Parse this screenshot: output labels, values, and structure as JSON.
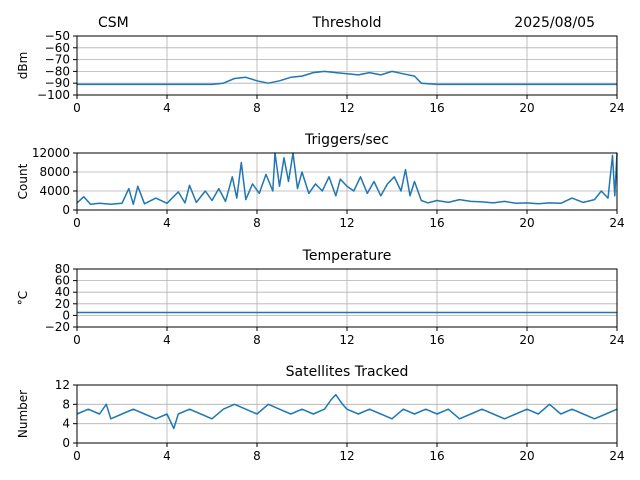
{
  "header": {
    "left": "CSM",
    "right": "2025/08/05"
  },
  "colors": {
    "line": "#1f77b4",
    "grid": "#b0b0b0",
    "axis": "#000000"
  },
  "chart_data": [
    {
      "type": "line",
      "title": "Threshold",
      "xlabel": "",
      "ylabel": "dBm",
      "xlim": [
        0,
        24
      ],
      "ylim": [
        -100,
        -50
      ],
      "xticks": [
        0,
        4,
        8,
        12,
        16,
        20,
        24
      ],
      "yticks": [
        -100,
        -90,
        -80,
        -70,
        -60,
        -50
      ],
      "ytick_labels": [
        "−100",
        "−90",
        "−80",
        "−70",
        "−60",
        "−50"
      ],
      "grid": true,
      "series": [
        {
          "x": [
            0,
            2,
            4,
            6,
            6.5,
            7,
            7.5,
            8,
            8.5,
            9,
            9.5,
            10,
            10.5,
            11,
            11.5,
            12,
            12.5,
            13,
            13.5,
            14,
            14.5,
            15,
            15.3,
            16,
            18,
            20,
            22,
            24
          ],
          "y": [
            -91,
            -91,
            -91,
            -91,
            -90,
            -86,
            -85,
            -88,
            -90,
            -88,
            -85,
            -84,
            -81,
            -80,
            -81,
            -82,
            -83,
            -81,
            -83,
            -80,
            -82,
            -84,
            -90,
            -91,
            -91,
            -91,
            -91,
            -91
          ]
        }
      ]
    },
    {
      "type": "line",
      "title": "Triggers/sec",
      "xlabel": "",
      "ylabel": "Count",
      "xlim": [
        0,
        24
      ],
      "ylim": [
        0,
        12000
      ],
      "xticks": [
        0,
        4,
        8,
        12,
        16,
        20,
        24
      ],
      "yticks": [
        0,
        4000,
        8000,
        12000
      ],
      "ytick_labels": [
        "0",
        "4000",
        "8000",
        "12000"
      ],
      "grid": true,
      "series": [
        {
          "x": [
            0,
            0.3,
            0.6,
            1,
            1.5,
            2,
            2.3,
            2.5,
            2.7,
            3,
            3.5,
            4,
            4.5,
            4.8,
            5,
            5.3,
            5.7,
            6,
            6.3,
            6.6,
            6.9,
            7.1,
            7.3,
            7.5,
            7.8,
            8.1,
            8.4,
            8.7,
            8.8,
            9,
            9.2,
            9.4,
            9.6,
            9.8,
            10,
            10.3,
            10.6,
            10.9,
            11.2,
            11.5,
            11.7,
            12,
            12.3,
            12.6,
            12.9,
            13.2,
            13.5,
            13.8,
            14.1,
            14.4,
            14.6,
            14.8,
            15,
            15.3,
            15.6,
            16,
            16.5,
            17,
            17.5,
            18,
            18.5,
            19,
            19.5,
            20,
            20.5,
            21,
            21.5,
            22,
            22.5,
            23,
            23.3,
            23.6,
            23.8,
            23.9,
            24
          ],
          "y": [
            1500,
            2800,
            1200,
            1400,
            1200,
            1400,
            4500,
            1200,
            5000,
            1300,
            2500,
            1400,
            3800,
            1500,
            5200,
            1600,
            4000,
            2000,
            4500,
            1800,
            7000,
            2500,
            10000,
            2200,
            5500,
            3500,
            7500,
            4000,
            12000,
            5000,
            11000,
            6000,
            12000,
            4500,
            8000,
            3500,
            5500,
            4000,
            7000,
            3000,
            6500,
            5000,
            4000,
            7000,
            3500,
            6000,
            3000,
            5500,
            7000,
            4000,
            8500,
            3000,
            6000,
            2000,
            1500,
            2000,
            1600,
            2200,
            1800,
            1700,
            1500,
            1800,
            1400,
            1500,
            1300,
            1500,
            1400,
            2500,
            1600,
            2200,
            4000,
            2500,
            11500,
            3000,
            12000
          ]
        }
      ]
    },
    {
      "type": "line",
      "title": "Temperature",
      "xlabel": "",
      "ylabel": "°C",
      "xlim": [
        0,
        24
      ],
      "ylim": [
        -20,
        80
      ],
      "xticks": [
        0,
        4,
        8,
        12,
        16,
        20,
        24
      ],
      "yticks": [
        -20,
        0,
        20,
        40,
        60,
        80
      ],
      "ytick_labels": [
        "−20",
        "0",
        "20",
        "40",
        "60",
        "80"
      ],
      "grid": true,
      "series": [
        {
          "x": [
            0,
            24
          ],
          "y": [
            5,
            5
          ]
        }
      ]
    },
    {
      "type": "line",
      "title": "Satellites Tracked",
      "xlabel": "",
      "ylabel": "Number",
      "xlim": [
        0,
        24
      ],
      "ylim": [
        0,
        12
      ],
      "xticks": [
        0,
        4,
        8,
        12,
        16,
        20,
        24
      ],
      "yticks": [
        0,
        4,
        8,
        12
      ],
      "ytick_labels": [
        "0",
        "4",
        "8",
        "12"
      ],
      "grid": true,
      "series": [
        {
          "x": [
            0,
            0.5,
            1,
            1.3,
            1.5,
            2,
            2.5,
            3,
            3.5,
            4,
            4.3,
            4.5,
            5,
            5.5,
            6,
            6.5,
            7,
            7.5,
            8,
            8.5,
            9,
            9.5,
            10,
            10.5,
            11,
            11.3,
            11.5,
            11.8,
            12,
            12.5,
            13,
            13.5,
            14,
            14.5,
            15,
            15.5,
            16,
            16.5,
            17,
            17.5,
            18,
            18.5,
            19,
            19.5,
            20,
            20.5,
            21,
            21.5,
            22,
            22.5,
            23,
            23.5,
            24
          ],
          "y": [
            6,
            7,
            6,
            8,
            5,
            6,
            7,
            6,
            5,
            6,
            3,
            6,
            7,
            6,
            5,
            7,
            8,
            7,
            6,
            8,
            7,
            6,
            7,
            6,
            7,
            9,
            10,
            8,
            7,
            6,
            7,
            6,
            5,
            7,
            6,
            7,
            6,
            7,
            5,
            6,
            7,
            6,
            5,
            6,
            7,
            6,
            8,
            6,
            7,
            6,
            5,
            6,
            7
          ]
        }
      ]
    }
  ]
}
